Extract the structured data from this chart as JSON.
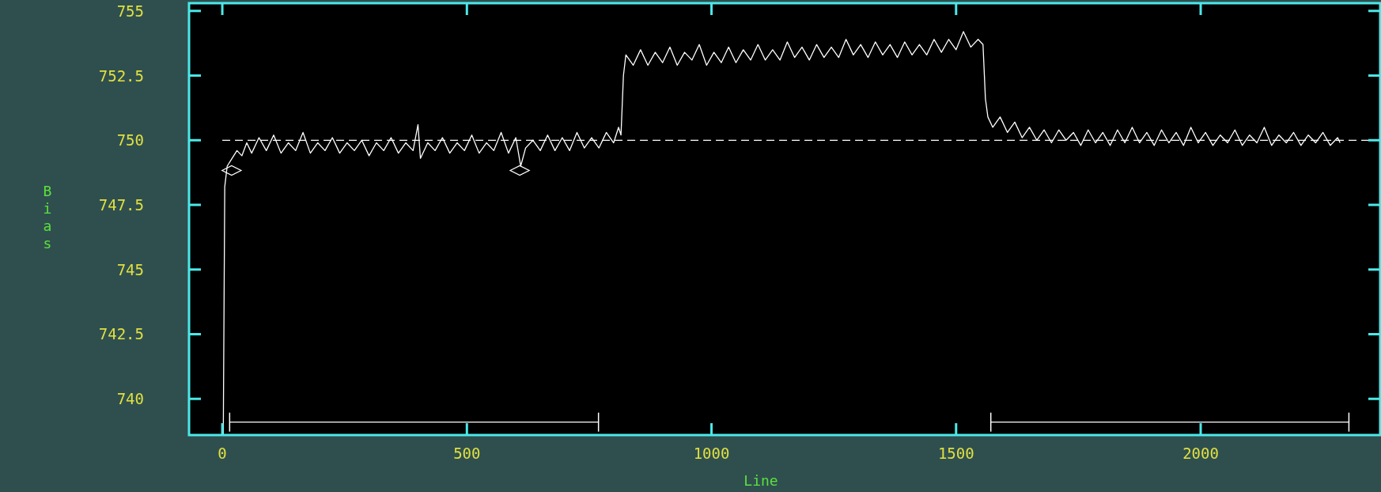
{
  "chart_data": {
    "type": "line",
    "xlabel": "Line",
    "ylabel": "Bias",
    "xlim": [
      -68,
      2367
    ],
    "ylim": [
      738.6,
      755.3
    ],
    "xticks": [
      0,
      500,
      1000,
      1500,
      2000
    ],
    "yticks": [
      740,
      742.5,
      745,
      747.5,
      750,
      752.5,
      755
    ],
    "grid": false,
    "series": [
      {
        "color": "#ffffff",
        "marker": "none",
        "line_style": "solid",
        "x": [
          2,
          5,
          10,
          20,
          30,
          40,
          50,
          60,
          75,
          90,
          105,
          120,
          135,
          150,
          165,
          180,
          195,
          210,
          225,
          240,
          255,
          270,
          285,
          300,
          315,
          330,
          345,
          360,
          375,
          390,
          400,
          405,
          420,
          435,
          450,
          465,
          480,
          495,
          510,
          525,
          540,
          555,
          570,
          585,
          600,
          610,
          620,
          635,
          650,
          665,
          680,
          695,
          710,
          725,
          740,
          755,
          770,
          785,
          800,
          810,
          815,
          820,
          825,
          840,
          855,
          870,
          885,
          900,
          915,
          930,
          945,
          960,
          975,
          990,
          1005,
          1020,
          1035,
          1050,
          1065,
          1080,
          1095,
          1110,
          1125,
          1140,
          1155,
          1170,
          1185,
          1200,
          1215,
          1230,
          1245,
          1260,
          1275,
          1290,
          1305,
          1320,
          1335,
          1350,
          1365,
          1380,
          1395,
          1410,
          1425,
          1440,
          1455,
          1470,
          1485,
          1500,
          1515,
          1530,
          1545,
          1555,
          1560,
          1565,
          1575,
          1590,
          1605,
          1620,
          1635,
          1650,
          1665,
          1680,
          1695,
          1710,
          1725,
          1740,
          1755,
          1770,
          1785,
          1800,
          1815,
          1830,
          1845,
          1860,
          1875,
          1890,
          1905,
          1920,
          1935,
          1950,
          1965,
          1980,
          1995,
          2010,
          2025,
          2040,
          2055,
          2070,
          2085,
          2100,
          2115,
          2130,
          2145,
          2160,
          2175,
          2190,
          2205,
          2220,
          2235,
          2250,
          2265,
          2280,
          2285
        ],
        "values": [
          738.6,
          748.2,
          749.0,
          749.3,
          749.6,
          749.4,
          749.9,
          749.5,
          750.1,
          749.6,
          750.2,
          749.5,
          749.9,
          749.6,
          750.3,
          749.5,
          749.9,
          749.6,
          750.1,
          749.5,
          749.9,
          749.6,
          750.0,
          749.4,
          749.9,
          749.6,
          750.1,
          749.5,
          749.9,
          749.6,
          750.6,
          749.3,
          749.9,
          749.6,
          750.1,
          749.5,
          749.9,
          749.6,
          750.2,
          749.5,
          749.9,
          749.6,
          750.3,
          749.5,
          750.1,
          749.0,
          749.7,
          750.0,
          749.6,
          750.2,
          749.6,
          750.1,
          749.6,
          750.3,
          749.7,
          750.1,
          749.7,
          750.3,
          749.9,
          750.5,
          750.2,
          752.5,
          753.3,
          752.9,
          753.5,
          752.9,
          753.4,
          753.0,
          753.6,
          752.9,
          753.4,
          753.1,
          753.7,
          752.9,
          753.4,
          753.0,
          753.6,
          753.0,
          753.5,
          753.1,
          753.7,
          753.1,
          753.5,
          753.1,
          753.8,
          753.2,
          753.6,
          753.1,
          753.7,
          753.2,
          753.6,
          753.2,
          753.9,
          753.3,
          753.7,
          753.2,
          753.8,
          753.3,
          753.7,
          753.2,
          753.8,
          753.3,
          753.7,
          753.3,
          753.9,
          753.4,
          753.9,
          753.5,
          754.2,
          753.6,
          753.9,
          753.7,
          751.6,
          750.9,
          750.5,
          750.9,
          750.3,
          750.7,
          750.1,
          750.5,
          750.0,
          750.4,
          749.9,
          750.4,
          750.0,
          750.3,
          749.8,
          750.4,
          749.9,
          750.3,
          749.8,
          750.4,
          749.9,
          750.5,
          749.9,
          750.3,
          749.8,
          750.4,
          749.9,
          750.3,
          749.8,
          750.5,
          749.9,
          750.3,
          749.8,
          750.2,
          749.9,
          750.4,
          749.8,
          750.2,
          749.9,
          750.5,
          749.8,
          750.2,
          749.9,
          750.3,
          749.8,
          750.2,
          749.9,
          750.3,
          749.8,
          750.1,
          749.9
        ]
      },
      {
        "type": "scatter",
        "color": "#ffffff",
        "marker": "diamond",
        "x": [
          19,
          608
        ],
        "values": [
          748.83,
          748.83
        ]
      },
      {
        "color": "#ffffff",
        "marker": "none",
        "x": [
          15,
          769,
          1170,
          1571,
          2303
        ],
        "values": [
          739.1,
          739.1,
          null,
          739.1,
          739.1
        ]
      }
    ],
    "ref_lines": [
      {
        "axis": "y",
        "value": 750,
        "color": "#ffffff",
        "line_style": "dashed"
      }
    ]
  }
}
